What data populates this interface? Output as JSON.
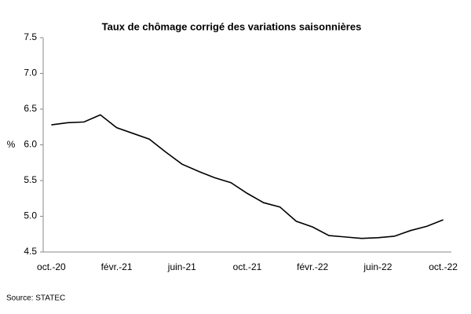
{
  "chart_data": {
    "type": "line",
    "title": "Taux de chômage corrigé des variations saisonnières",
    "y_label": "%",
    "source": "Source: STATEC",
    "categories": [
      "oct.-20",
      null,
      null,
      null,
      "févr.-21",
      null,
      null,
      null,
      "juin-21",
      null,
      null,
      null,
      "oct.-21",
      null,
      null,
      null,
      "févr.-22",
      null,
      null,
      null,
      "juin-22",
      null,
      null,
      null,
      "oct.-22"
    ],
    "values": [
      6.28,
      6.31,
      6.32,
      6.42,
      6.24,
      6.16,
      6.08,
      5.9,
      5.73,
      5.63,
      5.54,
      5.47,
      5.32,
      5.19,
      5.13,
      4.93,
      4.85,
      4.73,
      4.71,
      4.69,
      4.7,
      4.72,
      4.8,
      4.86,
      4.95
    ],
    "color": "#000000",
    "ylim": [
      4.5,
      7.5
    ],
    "yticks": [
      4.5,
      {
        "value": 5,
        "label": "5.0"
      },
      5.5,
      {
        "value": 6,
        "label": "6.0"
      },
      6.5,
      {
        "value": 7,
        "label": "7.0"
      },
      7.5
    ],
    "grid": false
  }
}
